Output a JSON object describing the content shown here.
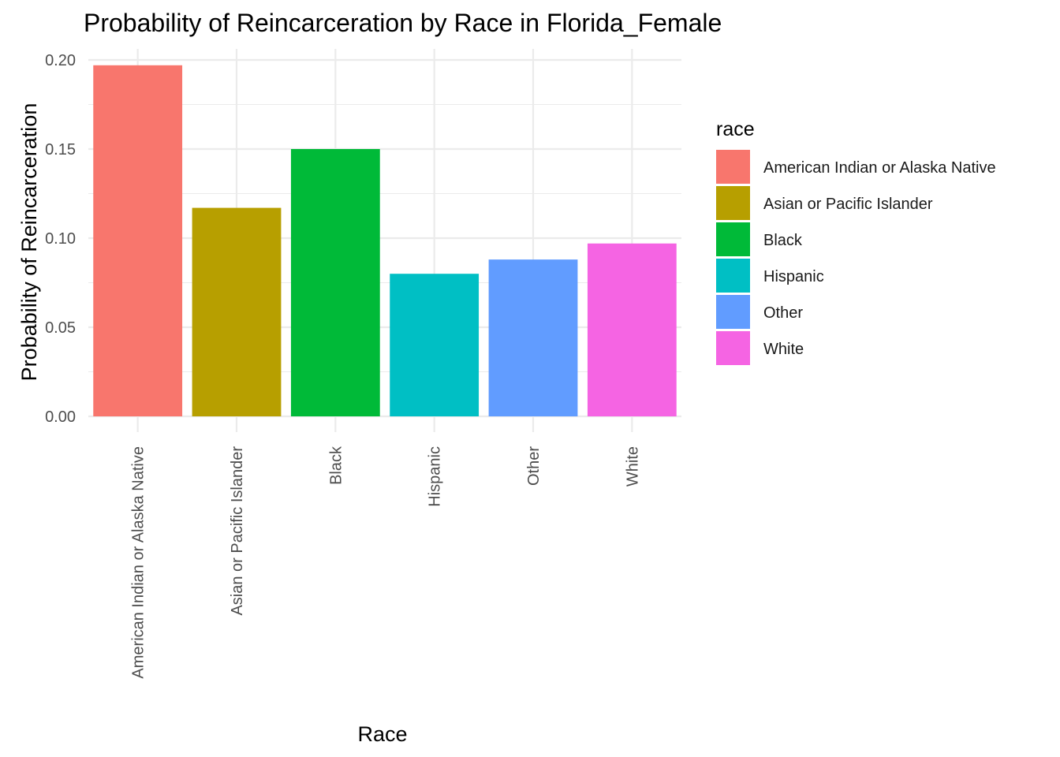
{
  "chart_data": {
    "type": "bar",
    "title": "Probability of Reincarceration by Race in Florida_Female",
    "xlabel": "Race",
    "ylabel": "Probability of Reincarceration",
    "categories": [
      "American Indian or Alaska Native",
      "Asian or Pacific Islander",
      "Black",
      "Hispanic",
      "Other",
      "White"
    ],
    "values": [
      0.197,
      0.117,
      0.15,
      0.08,
      0.088,
      0.097
    ],
    "colors": [
      "#F8766D",
      "#B79F00",
      "#00BA38",
      "#00BFC4",
      "#619CFF",
      "#F564E3"
    ],
    "ylim": [
      0,
      0.2
    ],
    "yticks": [
      "0.00",
      "0.05",
      "0.10",
      "0.15",
      "0.20"
    ],
    "ytick_values": [
      0,
      0.05,
      0.1,
      0.15,
      0.2
    ],
    "grid": true,
    "legend": {
      "title": "race",
      "placement": "right",
      "entries": [
        "American Indian or Alaska Native",
        "Asian or Pacific Islander",
        "Black",
        "Hispanic",
        "Other",
        "White"
      ]
    }
  }
}
